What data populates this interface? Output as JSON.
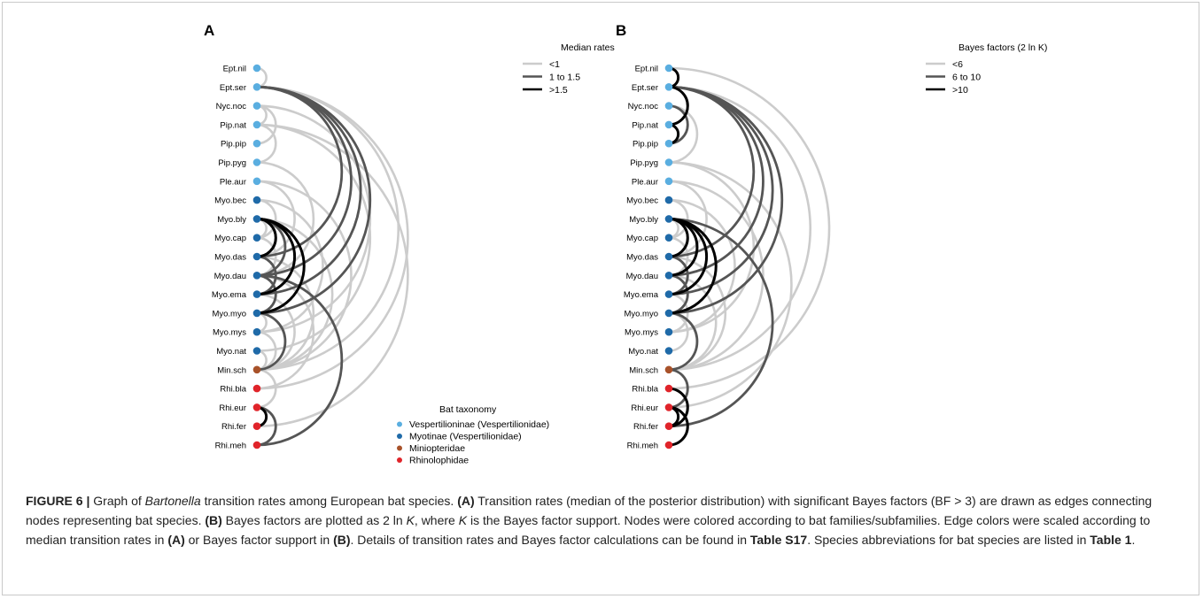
{
  "chart_data": {
    "type": "arc-diagram",
    "nodes": [
      {
        "label": "Ept.nil",
        "group": "vesp"
      },
      {
        "label": "Ept.ser",
        "group": "vesp"
      },
      {
        "label": "Nyc.noc",
        "group": "vesp"
      },
      {
        "label": "Pip.nat",
        "group": "vesp"
      },
      {
        "label": "Pip.pip",
        "group": "vesp"
      },
      {
        "label": "Pip.pyg",
        "group": "vesp"
      },
      {
        "label": "Ple.aur",
        "group": "vesp"
      },
      {
        "label": "Myo.bec",
        "group": "myo"
      },
      {
        "label": "Myo.bly",
        "group": "myo"
      },
      {
        "label": "Myo.cap",
        "group": "myo"
      },
      {
        "label": "Myo.das",
        "group": "myo"
      },
      {
        "label": "Myo.dau",
        "group": "myo"
      },
      {
        "label": "Myo.ema",
        "group": "myo"
      },
      {
        "label": "Myo.myo",
        "group": "myo"
      },
      {
        "label": "Myo.mys",
        "group": "myo"
      },
      {
        "label": "Myo.nat",
        "group": "myo"
      },
      {
        "label": "Min.sch",
        "group": "mini"
      },
      {
        "label": "Rhi.bla",
        "group": "rhino"
      },
      {
        "label": "Rhi.eur",
        "group": "rhino"
      },
      {
        "label": "Rhi.fer",
        "group": "rhino"
      },
      {
        "label": "Rhi.meh",
        "group": "rhino"
      }
    ],
    "taxonomy": {
      "title": "Bat taxonomy",
      "groups": [
        {
          "key": "vesp",
          "label": "Vespertilioninae (Vespertilionidae)",
          "color": "#5aaee0"
        },
        {
          "key": "myo",
          "label": "Myotinae (Vespertilionidae)",
          "color": "#1f6aa8"
        },
        {
          "key": "mini",
          "label": "Miniopteridae",
          "color": "#a8522a"
        },
        {
          "key": "rhino",
          "label": "Rhinolophidae",
          "color": "#e0242a"
        }
      ]
    },
    "level_colors": [
      "#cccccc",
      "#555555",
      "#000000"
    ],
    "panels": [
      {
        "id": "A",
        "legend": {
          "title": "Median rates",
          "items": [
            "<1",
            "1 to 1.5",
            ">1.5"
          ]
        },
        "edges": [
          [
            0,
            1,
            0
          ],
          [
            1,
            11,
            1
          ],
          [
            1,
            12,
            1
          ],
          [
            1,
            13,
            1
          ],
          [
            1,
            10,
            1
          ],
          [
            1,
            16,
            0
          ],
          [
            1,
            17,
            0
          ],
          [
            2,
            3,
            0
          ],
          [
            2,
            4,
            0
          ],
          [
            2,
            14,
            0
          ],
          [
            3,
            5,
            0
          ],
          [
            3,
            15,
            0
          ],
          [
            5,
            11,
            0
          ],
          [
            6,
            10,
            0
          ],
          [
            6,
            16,
            0
          ],
          [
            7,
            9,
            0
          ],
          [
            7,
            14,
            0
          ],
          [
            8,
            10,
            2
          ],
          [
            8,
            11,
            1
          ],
          [
            8,
            12,
            2
          ],
          [
            8,
            13,
            2
          ],
          [
            8,
            9,
            0
          ],
          [
            8,
            16,
            0
          ],
          [
            9,
            11,
            0
          ],
          [
            10,
            12,
            1
          ],
          [
            10,
            16,
            0
          ],
          [
            11,
            13,
            1
          ],
          [
            11,
            17,
            0
          ],
          [
            11,
            20,
            1
          ],
          [
            12,
            16,
            0
          ],
          [
            13,
            14,
            0
          ],
          [
            13,
            16,
            1
          ],
          [
            14,
            16,
            0
          ],
          [
            15,
            16,
            0
          ],
          [
            16,
            18,
            0
          ],
          [
            18,
            19,
            2
          ],
          [
            18,
            20,
            1
          ],
          [
            19,
            3,
            0
          ]
        ]
      },
      {
        "id": "B",
        "legend": {
          "title": "Bayes factors (2 ln K)",
          "items": [
            "<6",
            "6 to 10",
            ">10"
          ]
        },
        "edges": [
          [
            0,
            1,
            2
          ],
          [
            1,
            3,
            2
          ],
          [
            3,
            4,
            2
          ],
          [
            2,
            4,
            1
          ],
          [
            1,
            11,
            1
          ],
          [
            1,
            12,
            1
          ],
          [
            1,
            13,
            1
          ],
          [
            1,
            10,
            1
          ],
          [
            1,
            16,
            0
          ],
          [
            2,
            5,
            0
          ],
          [
            5,
            14,
            0
          ],
          [
            5,
            18,
            0
          ],
          [
            6,
            10,
            0
          ],
          [
            6,
            16,
            0
          ],
          [
            7,
            9,
            0
          ],
          [
            7,
            14,
            0
          ],
          [
            8,
            10,
            2
          ],
          [
            8,
            11,
            2
          ],
          [
            8,
            12,
            2
          ],
          [
            8,
            13,
            2
          ],
          [
            8,
            9,
            0
          ],
          [
            8,
            19,
            1
          ],
          [
            9,
            11,
            0
          ],
          [
            10,
            12,
            1
          ],
          [
            10,
            16,
            0
          ],
          [
            11,
            13,
            1
          ],
          [
            11,
            16,
            0
          ],
          [
            12,
            14,
            0
          ],
          [
            13,
            16,
            1
          ],
          [
            13,
            15,
            0
          ],
          [
            16,
            18,
            1
          ],
          [
            17,
            19,
            2
          ],
          [
            18,
            19,
            2
          ],
          [
            18,
            20,
            2
          ],
          [
            0,
            17,
            0
          ]
        ]
      }
    ]
  },
  "caption": {
    "label": "FIGURE 6 | ",
    "t1": "Graph of ",
    "genus": "Bartonella",
    "t2": " transition rates among European bat species. ",
    "refA": "(A)",
    "t3": " Transition rates (median of the posterior distribution) with significant Bayes factors (BF > 3) are drawn as edges connecting nodes representing bat species. ",
    "refB": "(B)",
    "t4": " Bayes factors are plotted as 2 ln ",
    "k": "K",
    "t5": ", where ",
    "t6": " is the Bayes factor support. Nodes were colored according to bat families/subfamilies. Edge colors were scaled according to median transition rates in ",
    "t7": " or Bayes factor support in ",
    "t8": ". Details of transition rates and Bayes factor calculations can be found in ",
    "tableS17": "Table S17",
    "t9": ". Species abbreviations for bat species are listed in ",
    "table1": "Table 1",
    "t10": "."
  }
}
